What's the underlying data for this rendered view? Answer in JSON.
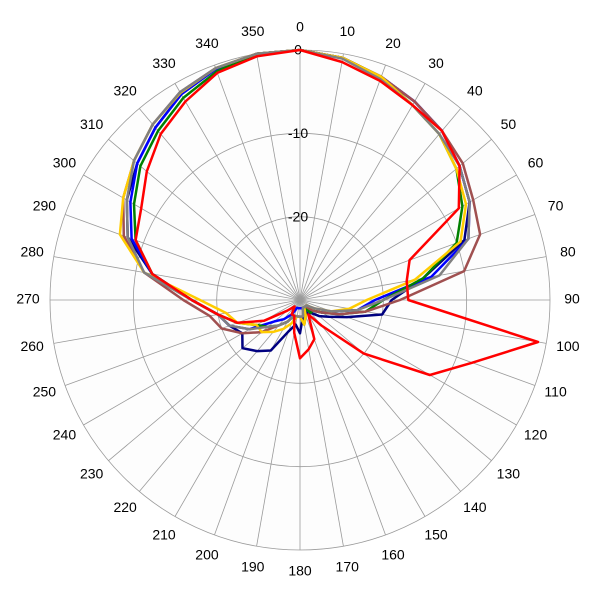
{
  "chart_data": {
    "type": "polar",
    "x": [
      0,
      10,
      20,
      30,
      40,
      50,
      60,
      70,
      80,
      90,
      100,
      110,
      120,
      130,
      140,
      150,
      160,
      170,
      180,
      190,
      200,
      210,
      220,
      230,
      240,
      250,
      260,
      270,
      280,
      290,
      300,
      310,
      320,
      330,
      340,
      350
    ],
    "xticks": [
      0,
      10,
      20,
      30,
      40,
      50,
      60,
      70,
      80,
      90,
      100,
      110,
      120,
      130,
      140,
      150,
      160,
      170,
      180,
      190,
      200,
      210,
      220,
      230,
      240,
      250,
      260,
      270,
      280,
      290,
      300,
      310,
      320,
      330,
      340,
      350
    ],
    "ylim": [
      -30,
      0
    ],
    "yticks": [
      -20,
      -10,
      0
    ],
    "grid": true,
    "series": [
      {
        "color": "#000080",
        "values": [
          0,
          -0.5,
          -1.5,
          -2.5,
          -3.5,
          -5,
          -6.5,
          -9,
          -15,
          -19,
          -20,
          -24,
          -26,
          -27,
          -28,
          -28,
          -29,
          -28,
          -26,
          -27,
          -26,
          -23,
          -22,
          -21,
          -22,
          -21,
          -20,
          -17,
          -12,
          -8,
          -6,
          -4.5,
          -3,
          -1.5,
          -0.5,
          0
        ]
      },
      {
        "color": "#0000ff",
        "values": [
          0,
          -0.5,
          -1.5,
          -2.5,
          -3.5,
          -5,
          -6.5,
          -8.5,
          -14,
          -21,
          -23,
          -26,
          -27,
          -28,
          -28.5,
          -29,
          -29,
          -29,
          -29,
          -29,
          -29,
          -28,
          -27,
          -26,
          -23,
          -21,
          -20,
          -17,
          -12,
          -8.5,
          -6.5,
          -4.5,
          -3,
          -1.5,
          -0.5,
          0
        ]
      },
      {
        "color": "#008000",
        "values": [
          0,
          -0.5,
          -1.5,
          -3,
          -4,
          -5.5,
          -7.5,
          -10,
          -15,
          -20,
          -22,
          -25,
          -27,
          -28,
          -28,
          -29,
          -28,
          -27,
          -28,
          -28,
          -28,
          -27,
          -26,
          -25,
          -24,
          -22,
          -20,
          -17,
          -12,
          -9,
          -7,
          -5,
          -3.5,
          -2,
          -0.8,
          0
        ]
      },
      {
        "color": "#a05050",
        "values": [
          0,
          -0.5,
          -1.5,
          -2.5,
          -3.5,
          -4.5,
          -6,
          -7,
          -10,
          -18,
          -22,
          -25,
          -27,
          -28,
          -29,
          -29,
          -29,
          -28,
          -28,
          -28,
          -28,
          -27,
          -26,
          -24,
          -22,
          -20,
          -19,
          -16,
          -11,
          -7.5,
          -5.5,
          -4,
          -2.5,
          -1.2,
          -0.4,
          0
        ]
      },
      {
        "color": "#ffcc00",
        "values": [
          0,
          -0.5,
          -1.5,
          -3,
          -4,
          -5.5,
          -7,
          -9.5,
          -16,
          -22,
          -24,
          -26,
          -28,
          -29,
          -29,
          -29,
          -28,
          -27,
          -28,
          -28,
          -27,
          -26,
          -25,
          -24,
          -24,
          -22,
          -21,
          -18,
          -11,
          -7,
          -5.5,
          -4,
          -2.5,
          -1.3,
          -0.4,
          0
        ]
      },
      {
        "color": "#808080",
        "values": [
          0,
          -0.6,
          -1.8,
          -3,
          -4,
          -5,
          -6.5,
          -8.5,
          -13,
          -20,
          -23,
          -26,
          -28,
          -29,
          -29,
          -29,
          -29,
          -28,
          -28,
          -28,
          -28,
          -27,
          -26,
          -25,
          -23,
          -21,
          -20,
          -17,
          -11,
          -8,
          -6,
          -4,
          -2.5,
          -1.2,
          -0.4,
          0
        ]
      },
      {
        "color": "#ff0000",
        "values": [
          0,
          -1,
          -2,
          -3,
          -3.5,
          -5,
          -8,
          -16,
          -17,
          -17,
          -1,
          -8,
          -12,
          -20,
          -26,
          -28,
          -25,
          -24,
          -23,
          -26,
          -28,
          -28,
          -29,
          -28,
          -25,
          -22,
          -20,
          -17,
          -12,
          -9,
          -8,
          -6,
          -4,
          -2.5,
          -1,
          -0.3
        ]
      }
    ]
  }
}
